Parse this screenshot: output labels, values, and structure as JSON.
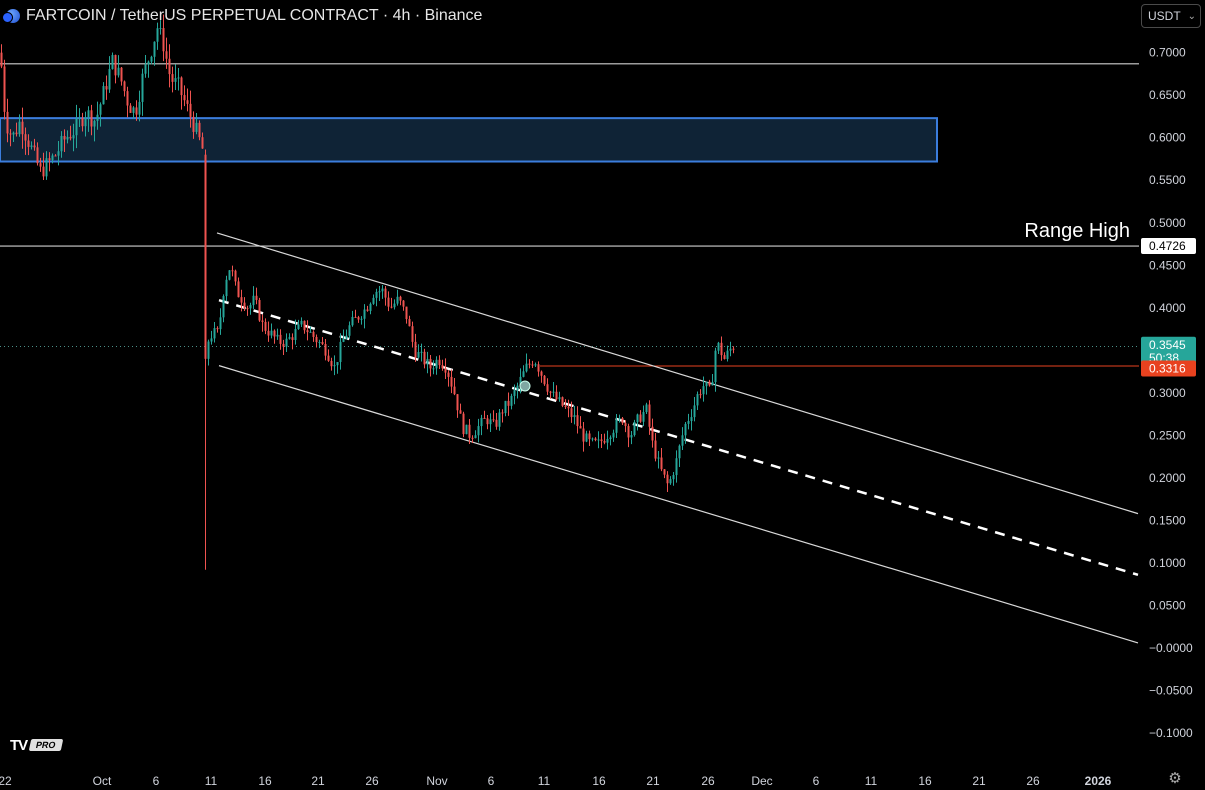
{
  "header": {
    "title": "FARTCOIN / TetherUS PERPETUAL CONTRACT · 4h · Binance"
  },
  "currency_selector": {
    "label": "USDT"
  },
  "logo": {
    "brand": "TV",
    "badge": "PRO"
  },
  "colors": {
    "up": "#26a69a",
    "down": "#ef5350",
    "zone_fill": "#0f2336",
    "zone_border": "#3b7ddd",
    "line": "#d9d9d9",
    "price_badge": "#26a69a",
    "level_badge": "#e8421f"
  },
  "chart_data": {
    "type": "candlestick",
    "x_ticks": [
      "22",
      "Oct",
      "6",
      "11",
      "16",
      "21",
      "26",
      "Nov",
      "6",
      "11",
      "16",
      "21",
      "26",
      "Dec",
      "6",
      "11",
      "16",
      "21",
      "26",
      "2026"
    ],
    "y_ticks": [
      "0.7000",
      "0.6500",
      "0.6000",
      "0.5500",
      "0.5000",
      "0.4500",
      "0.4000",
      "0.3000",
      "0.2500",
      "0.2000",
      "0.1500",
      "0.1000",
      "0.0500",
      "−0.0000",
      "−0.0500",
      "−0.1000"
    ],
    "ylim": [
      -0.12,
      0.76
    ],
    "price": {
      "current": "0.3545",
      "countdown": "50:38",
      "level": "0.3316",
      "range_high": "0.4726"
    },
    "annotations": {
      "range_high_label": "Range High"
    },
    "horizontal_lines": [
      0.6869,
      0.4726,
      0.3316
    ],
    "zone": {
      "top": 0.623,
      "bottom": 0.572
    },
    "channel": {
      "upper": [
        [
          217,
          0.488
        ],
        [
          1138,
          0.158
        ]
      ],
      "mid": [
        [
          219,
          0.409
        ],
        [
          1138,
          0.086
        ]
      ],
      "lower": [
        [
          219,
          0.332
        ],
        [
          1138,
          0.006
        ]
      ]
    },
    "price_path": [
      [
        0,
        0.7
      ],
      [
        5,
        0.62
      ],
      [
        12,
        0.6
      ],
      [
        20,
        0.62
      ],
      [
        30,
        0.59
      ],
      [
        40,
        0.56
      ],
      [
        48,
        0.57
      ],
      [
        55,
        0.58
      ],
      [
        65,
        0.6
      ],
      [
        75,
        0.61
      ],
      [
        85,
        0.63
      ],
      [
        95,
        0.62
      ],
      [
        105,
        0.66
      ],
      [
        112,
        0.69
      ],
      [
        120,
        0.67
      ],
      [
        128,
        0.64
      ],
      [
        135,
        0.63
      ],
      [
        142,
        0.67
      ],
      [
        150,
        0.7
      ],
      [
        157,
        0.73
      ],
      [
        163,
        0.71
      ],
      [
        170,
        0.67
      ],
      [
        178,
        0.66
      ],
      [
        185,
        0.64
      ],
      [
        192,
        0.62
      ],
      [
        198,
        0.6
      ],
      [
        204,
        0.58
      ],
      [
        207,
        0.36
      ],
      [
        212,
        0.37
      ],
      [
        218,
        0.37
      ],
      [
        224,
        0.43
      ],
      [
        230,
        0.45
      ],
      [
        236,
        0.42
      ],
      [
        242,
        0.41
      ],
      [
        248,
        0.4
      ],
      [
        254,
        0.41
      ],
      [
        262,
        0.38
      ],
      [
        270,
        0.37
      ],
      [
        278,
        0.36
      ],
      [
        286,
        0.36
      ],
      [
        294,
        0.37
      ],
      [
        302,
        0.38
      ],
      [
        310,
        0.37
      ],
      [
        318,
        0.36
      ],
      [
        326,
        0.35
      ],
      [
        334,
        0.33
      ],
      [
        342,
        0.36
      ],
      [
        350,
        0.38
      ],
      [
        358,
        0.39
      ],
      [
        366,
        0.4
      ],
      [
        374,
        0.42
      ],
      [
        382,
        0.42
      ],
      [
        390,
        0.4
      ],
      [
        398,
        0.41
      ],
      [
        406,
        0.39
      ],
      [
        414,
        0.35
      ],
      [
        422,
        0.34
      ],
      [
        430,
        0.33
      ],
      [
        438,
        0.34
      ],
      [
        446,
        0.33
      ],
      [
        454,
        0.3
      ],
      [
        462,
        0.26
      ],
      [
        470,
        0.25
      ],
      [
        478,
        0.26
      ],
      [
        486,
        0.27
      ],
      [
        494,
        0.26
      ],
      [
        502,
        0.28
      ],
      [
        510,
        0.29
      ],
      [
        518,
        0.31
      ],
      [
        526,
        0.33
      ],
      [
        534,
        0.34
      ],
      [
        542,
        0.32
      ],
      [
        550,
        0.3
      ],
      [
        558,
        0.29
      ],
      [
        566,
        0.28
      ],
      [
        574,
        0.27
      ],
      [
        582,
        0.25
      ],
      [
        590,
        0.24
      ],
      [
        598,
        0.24
      ],
      [
        606,
        0.25
      ],
      [
        614,
        0.26
      ],
      [
        622,
        0.27
      ],
      [
        630,
        0.25
      ],
      [
        638,
        0.27
      ],
      [
        646,
        0.28
      ],
      [
        652,
        0.24
      ],
      [
        660,
        0.21
      ],
      [
        668,
        0.19
      ],
      [
        676,
        0.22
      ],
      [
        684,
        0.26
      ],
      [
        692,
        0.28
      ],
      [
        698,
        0.3
      ],
      [
        704,
        0.31
      ],
      [
        710,
        0.3
      ],
      [
        716,
        0.36
      ],
      [
        724,
        0.34
      ],
      [
        732,
        0.355
      ]
    ]
  }
}
